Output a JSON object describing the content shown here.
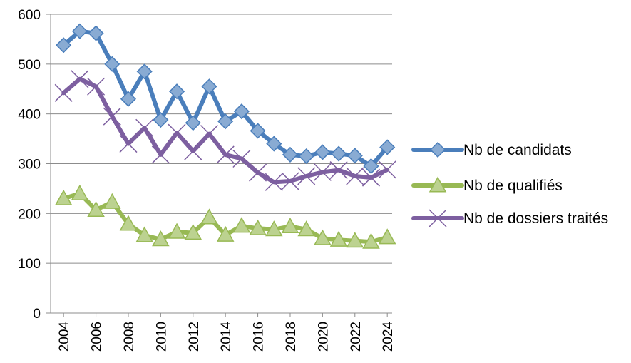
{
  "chart_data": {
    "type": "line",
    "x": [
      2004,
      2005,
      2006,
      2007,
      2008,
      2009,
      2010,
      2011,
      2012,
      2013,
      2014,
      2015,
      2016,
      2017,
      2018,
      2019,
      2020,
      2021,
      2022,
      2023,
      2024
    ],
    "x_tick_labels": [
      "2004",
      "2006",
      "2008",
      "2010",
      "2012",
      "2014",
      "2016",
      "2018",
      "2020",
      "2022",
      "2024"
    ],
    "y_tick_labels": [
      "0",
      "100",
      "200",
      "300",
      "400",
      "500",
      "600"
    ],
    "ylim": [
      0,
      600
    ],
    "grid": "horizontal",
    "legend_position": "right",
    "series": [
      {
        "name": "Nb de candidats",
        "color": "#4a7ebb",
        "marker": "diamond",
        "values": [
          538,
          566,
          562,
          500,
          430,
          485,
          388,
          445,
          382,
          455,
          385,
          405,
          366,
          340,
          318,
          315,
          323,
          320,
          316,
          295,
          333
        ]
      },
      {
        "name": "Nb de qualifiés",
        "color": "#98b954",
        "marker": "triangle",
        "values": [
          230,
          240,
          207,
          223,
          179,
          156,
          148,
          163,
          161,
          192,
          157,
          175,
          170,
          168,
          174,
          168,
          150,
          147,
          145,
          143,
          152
        ]
      },
      {
        "name": "Nb de dossiers traités",
        "color": "#7d5fa0",
        "marker": "x",
        "values": [
          442,
          470,
          455,
          395,
          340,
          372,
          318,
          362,
          325,
          360,
          318,
          310,
          282,
          263,
          265,
          275,
          283,
          287,
          275,
          272,
          288
        ]
      }
    ]
  }
}
